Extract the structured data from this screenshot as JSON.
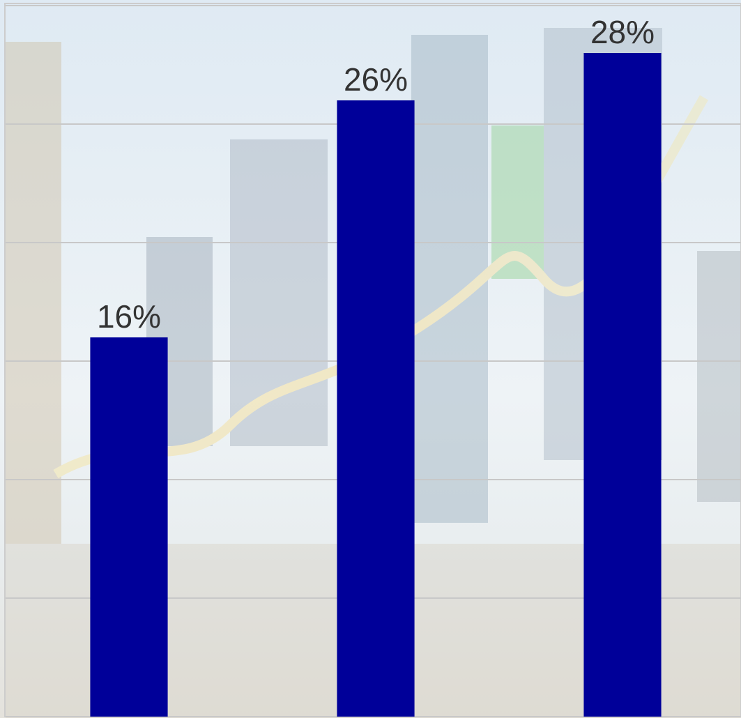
{
  "chart_data": {
    "type": "bar",
    "categories": [
      null,
      null,
      null
    ],
    "values": [
      16,
      26,
      28
    ],
    "value_labels": [
      "16%",
      "26%",
      "28%"
    ],
    "color": "#000099",
    "ylim": [
      0,
      30
    ],
    "yticks": [
      0,
      5,
      10,
      15,
      20,
      25,
      30
    ],
    "grid": true
  }
}
